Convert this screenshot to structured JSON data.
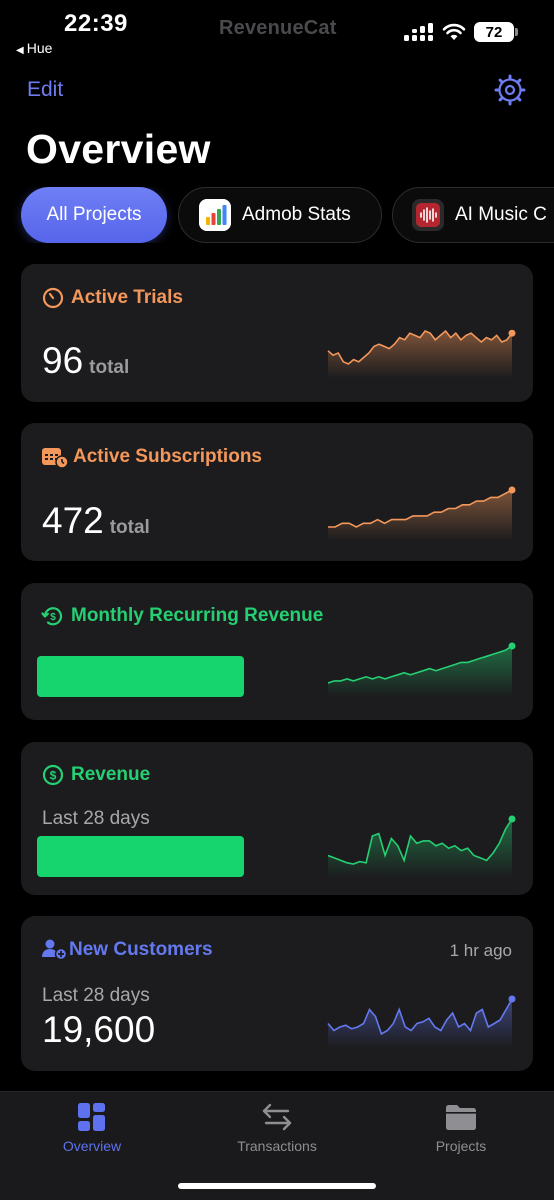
{
  "status_bar": {
    "time": "22:39",
    "back_label": "Hue",
    "brand": "RevenueCat",
    "battery": "72"
  },
  "header": {
    "edit_label": "Edit",
    "title": "Overview"
  },
  "chips": [
    {
      "label": "All Projects",
      "selected": true
    },
    {
      "label": "Admob Stats",
      "selected": false
    },
    {
      "label": "AI Music C",
      "selected": false
    }
  ],
  "cards": {
    "active_trials": {
      "title": "Active Trials",
      "value": "96",
      "unit": "total",
      "color": "#f4975a",
      "trend": [
        50,
        48,
        49,
        45,
        44,
        46,
        45,
        47,
        49,
        52,
        53,
        52,
        51,
        53,
        56,
        55,
        58,
        57,
        56,
        59,
        58,
        55,
        57,
        59,
        56,
        58,
        55,
        57,
        58,
        56,
        54,
        56,
        55,
        57,
        54,
        55,
        58
      ]
    },
    "active_subscriptions": {
      "title": "Active Subscriptions",
      "value": "472",
      "unit": "total",
      "color": "#f4975a",
      "trend": [
        80,
        80,
        81,
        81,
        80,
        81,
        81,
        82,
        81,
        82,
        82,
        82,
        83,
        83,
        83,
        84,
        84,
        85,
        85,
        86,
        86,
        87,
        87,
        88,
        88,
        89,
        90
      ]
    },
    "mrr": {
      "title": "Monthly Recurring Revenue",
      "color": "#25cf72",
      "trend": [
        60,
        61,
        61,
        62,
        61,
        62,
        63,
        62,
        63,
        62,
        63,
        64,
        65,
        64,
        65,
        66,
        67,
        66,
        67,
        68,
        69,
        70,
        70,
        71,
        72,
        73,
        74,
        75,
        76,
        78
      ]
    },
    "revenue": {
      "title": "Revenue",
      "sub_label": "Last 28 days",
      "color": "#25cf72",
      "trend": [
        50,
        48,
        46,
        44,
        43,
        45,
        44,
        66,
        68,
        50,
        64,
        58,
        46,
        66,
        60,
        62,
        62,
        58,
        60,
        56,
        58,
        54,
        56,
        50,
        48,
        46,
        52,
        60,
        72,
        80
      ]
    },
    "new_customers": {
      "title": "New Customers",
      "time_ago": "1 hr ago",
      "sub_label": "Last 28 days",
      "value": "19,600",
      "color": "#6479f0",
      "trend": [
        72,
        68,
        70,
        71,
        69,
        70,
        72,
        80,
        76,
        66,
        68,
        72,
        80,
        70,
        68,
        72,
        73,
        75,
        70,
        68,
        74,
        78,
        70,
        72,
        68,
        78,
        80,
        70,
        72,
        74,
        80,
        86
      ]
    }
  },
  "tab_bar": [
    {
      "label": "Overview",
      "icon": "overview-icon",
      "active": true
    },
    {
      "label": "Transactions",
      "icon": "transactions-icon",
      "active": false
    },
    {
      "label": "Projects",
      "icon": "projects-icon",
      "active": false
    }
  ]
}
